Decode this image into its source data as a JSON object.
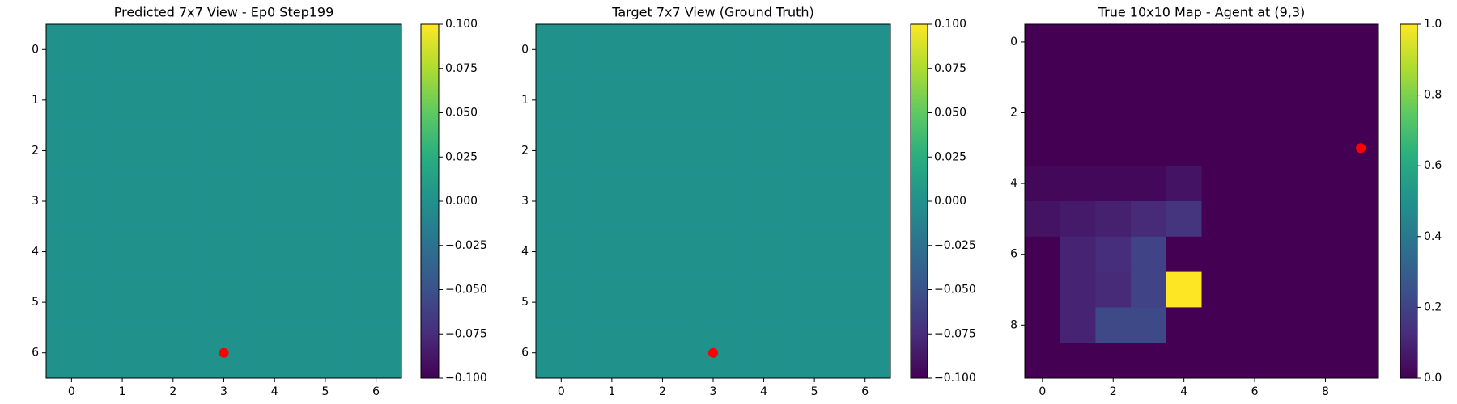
{
  "chart_data": [
    {
      "type": "heatmap",
      "title": "Predicted 7x7 View - Ep0 Step199",
      "colormap": "viridis",
      "values": [
        [
          0,
          0,
          0,
          0,
          0,
          0,
          0
        ],
        [
          0,
          0,
          0,
          0,
          0,
          0,
          0
        ],
        [
          0,
          0,
          0,
          0,
          0,
          0,
          0
        ],
        [
          0,
          0,
          0,
          0,
          0,
          0,
          0
        ],
        [
          0,
          0,
          0,
          0,
          0,
          0,
          0
        ],
        [
          0,
          0,
          0,
          0,
          0,
          0,
          0
        ],
        [
          0,
          0,
          0,
          0,
          0,
          0,
          0
        ]
      ],
      "xlim": [
        -0.5,
        6.5
      ],
      "ylim": [
        6.5,
        -0.5
      ],
      "xticks": [
        0,
        1,
        2,
        3,
        4,
        5,
        6
      ],
      "yticks": [
        0,
        1,
        2,
        3,
        4,
        5,
        6
      ],
      "marker": {
        "x": 3,
        "y": 6,
        "color": "#ff0000"
      },
      "colorbar": {
        "lim": [
          -0.1,
          0.1
        ],
        "ticks": [
          {
            "value": -0.1,
            "label": "−0.100"
          },
          {
            "value": -0.075,
            "label": "−0.075"
          },
          {
            "value": -0.05,
            "label": "−0.050"
          },
          {
            "value": -0.025,
            "label": "−0.025"
          },
          {
            "value": 0,
            "label": "0.000"
          },
          {
            "value": 0.025,
            "label": "0.025"
          },
          {
            "value": 0.05,
            "label": "0.050"
          },
          {
            "value": 0.075,
            "label": "0.075"
          },
          {
            "value": 0.1,
            "label": "0.100"
          }
        ]
      }
    },
    {
      "type": "heatmap",
      "title": "Target 7x7 View (Ground Truth)",
      "colormap": "viridis",
      "values": [
        [
          0,
          0,
          0,
          0,
          0,
          0,
          0
        ],
        [
          0,
          0,
          0,
          0,
          0,
          0,
          0
        ],
        [
          0,
          0,
          0,
          0,
          0,
          0,
          0
        ],
        [
          0,
          0,
          0,
          0,
          0,
          0,
          0
        ],
        [
          0,
          0,
          0,
          0,
          0,
          0,
          0
        ],
        [
          0,
          0,
          0,
          0,
          0,
          0,
          0
        ],
        [
          0,
          0,
          0,
          0,
          0,
          0,
          0
        ]
      ],
      "xlim": [
        -0.5,
        6.5
      ],
      "ylim": [
        6.5,
        -0.5
      ],
      "xticks": [
        0,
        1,
        2,
        3,
        4,
        5,
        6
      ],
      "yticks": [
        0,
        1,
        2,
        3,
        4,
        5,
        6
      ],
      "marker": {
        "x": 3,
        "y": 6,
        "color": "#ff0000"
      },
      "colorbar": {
        "lim": [
          -0.1,
          0.1
        ],
        "ticks": [
          {
            "value": -0.1,
            "label": "−0.100"
          },
          {
            "value": -0.075,
            "label": "−0.075"
          },
          {
            "value": -0.05,
            "label": "−0.050"
          },
          {
            "value": -0.025,
            "label": "−0.025"
          },
          {
            "value": 0,
            "label": "0.000"
          },
          {
            "value": 0.025,
            "label": "0.025"
          },
          {
            "value": 0.05,
            "label": "0.050"
          },
          {
            "value": 0.075,
            "label": "0.075"
          },
          {
            "value": 0.1,
            "label": "0.100"
          }
        ]
      }
    },
    {
      "type": "heatmap",
      "title": "True 10x10 Map - Agent at (9,3)",
      "colormap": "viridis",
      "values": [
        [
          0,
          0,
          0,
          0,
          0,
          0,
          0,
          0,
          0,
          0
        ],
        [
          0,
          0,
          0,
          0,
          0,
          0,
          0,
          0,
          0,
          0
        ],
        [
          0,
          0,
          0,
          0,
          0,
          0,
          0,
          0,
          0,
          0
        ],
        [
          0,
          0,
          0,
          0,
          0,
          0,
          0,
          0,
          0,
          0
        ],
        [
          0.02,
          0.02,
          0.02,
          0.02,
          0.05,
          0,
          0,
          0,
          0,
          0
        ],
        [
          0.05,
          0.07,
          0.09,
          0.12,
          0.15,
          0,
          0,
          0,
          0,
          0
        ],
        [
          0,
          0.1,
          0.13,
          0.2,
          0,
          0,
          0,
          0,
          0,
          0
        ],
        [
          0,
          0.1,
          0.12,
          0.2,
          1,
          0,
          0,
          0,
          0,
          0
        ],
        [
          0,
          0.1,
          0.22,
          0.22,
          0,
          0,
          0,
          0,
          0,
          0
        ],
        [
          0,
          0,
          0,
          0,
          0,
          0,
          0,
          0,
          0,
          0
        ]
      ],
      "xlim": [
        -0.5,
        9.5
      ],
      "ylim": [
        9.5,
        -0.5
      ],
      "xticks": [
        0,
        2,
        4,
        6,
        8
      ],
      "yticks": [
        0,
        2,
        4,
        6,
        8
      ],
      "marker": {
        "x": 9,
        "y": 3,
        "color": "#ff0000"
      },
      "colorbar": {
        "lim": [
          0,
          1
        ],
        "ticks": [
          {
            "value": 0,
            "label": "0.0"
          },
          {
            "value": 0.2,
            "label": "0.2"
          },
          {
            "value": 0.4,
            "label": "0.4"
          },
          {
            "value": 0.6,
            "label": "0.6"
          },
          {
            "value": 0.8,
            "label": "0.8"
          },
          {
            "value": 1,
            "label": "1.0"
          }
        ]
      }
    }
  ]
}
